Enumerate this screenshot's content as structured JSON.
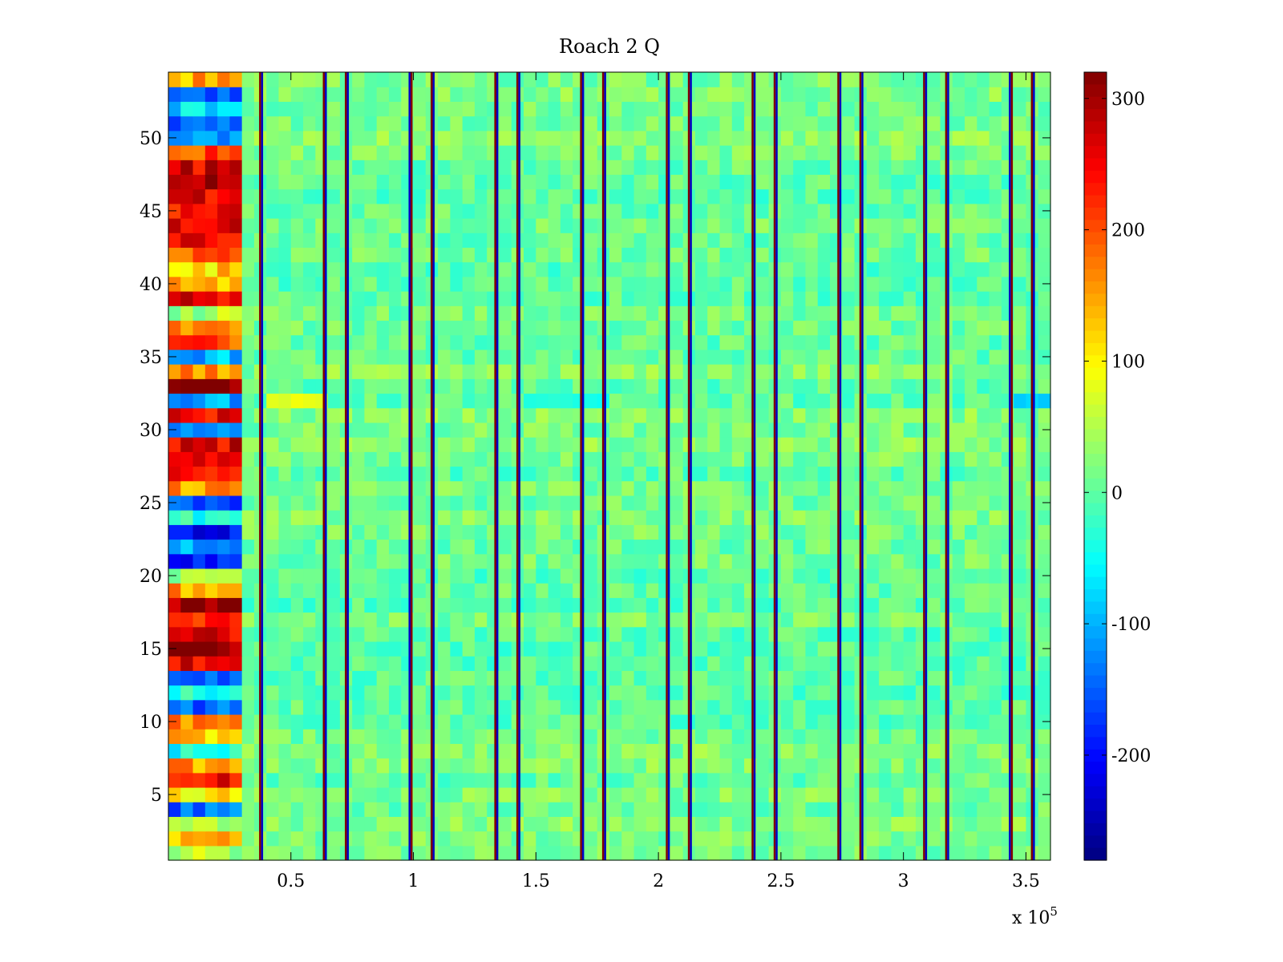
{
  "chart_data": {
    "type": "heatmap",
    "title": "Roach 2 Q",
    "xlabel": "",
    "ylabel": "",
    "x_exponent_label": "x 10",
    "x_exponent_power": "5",
    "xlim": [
      0,
      360000
    ],
    "ylim": [
      0.5,
      54.5
    ],
    "x_ticks": [
      50000,
      100000,
      150000,
      200000,
      250000,
      300000,
      350000
    ],
    "x_tick_labels": [
      "0.5",
      "1",
      "1.5",
      "2",
      "2.5",
      "3",
      "3.5"
    ],
    "y_ticks": [
      5,
      10,
      15,
      20,
      25,
      30,
      35,
      40,
      45,
      50
    ],
    "y_tick_labels": [
      "5",
      "10",
      "15",
      "20",
      "25",
      "30",
      "35",
      "40",
      "45",
      "50"
    ],
    "rows": 54,
    "colormap": "jet",
    "clim": [
      -280,
      320
    ],
    "colorbar_ticks": [
      300,
      200,
      100,
      0,
      -100,
      -200
    ],
    "colorbar_tick_labels": [
      "300",
      "200",
      "100",
      "0",
      "-100",
      "-200"
    ],
    "background_level": 10,
    "left_block_x_end": 30000,
    "left_block_row_levels": [
      40,
      150,
      40,
      -150,
      100,
      250,
      150,
      -40,
      120,
      160,
      -150,
      -40,
      -150,
      250,
      310,
      260,
      240,
      310,
      150,
      40,
      -200,
      -100,
      -200,
      -40,
      -150,
      160,
      250,
      250,
      260,
      -150,
      250,
      -100,
      320,
      150,
      -100,
      200,
      160,
      40,
      250,
      150,
      120,
      200,
      250,
      260,
      250,
      260,
      300,
      260,
      200,
      -100,
      -150,
      -80,
      -150,
      150
    ],
    "row_31_feature": {
      "row": 32,
      "level_x_37k_to_61k": 80,
      "level_x_142k_to_178k": -40,
      "level_x_344k_to_360k": -80
    },
    "vertical_stripes": [
      {
        "x": 38000,
        "levels": [
          320,
          -240
        ]
      },
      {
        "x": 64000,
        "levels": [
          320,
          -240
        ]
      },
      {
        "x": 73000,
        "levels": [
          320,
          -240
        ]
      },
      {
        "x": 99000,
        "levels": [
          -240,
          320
        ]
      },
      {
        "x": 108000,
        "levels": [
          320,
          -240
        ]
      },
      {
        "x": 134000,
        "levels": [
          320,
          -240
        ]
      },
      {
        "x": 143000,
        "levels": [
          320,
          -240
        ]
      },
      {
        "x": 169000,
        "levels": [
          320,
          -240
        ]
      },
      {
        "x": 178000,
        "levels": [
          320,
          -240
        ]
      },
      {
        "x": 204000,
        "levels": [
          320,
          -240
        ]
      },
      {
        "x": 213000,
        "levels": [
          320,
          -240
        ]
      },
      {
        "x": 239000,
        "levels": [
          320,
          -240
        ]
      },
      {
        "x": 248000,
        "levels": [
          320,
          -240
        ]
      },
      {
        "x": 274000,
        "levels": [
          320,
          -240
        ]
      },
      {
        "x": 283000,
        "levels": [
          320,
          -240
        ]
      },
      {
        "x": 309000,
        "levels": [
          320,
          -240
        ]
      },
      {
        "x": 318000,
        "levels": [
          320,
          -240
        ]
      },
      {
        "x": 344000,
        "levels": [
          -240,
          320
        ]
      },
      {
        "x": 353000,
        "levels": [
          320,
          -240
        ]
      }
    ]
  }
}
